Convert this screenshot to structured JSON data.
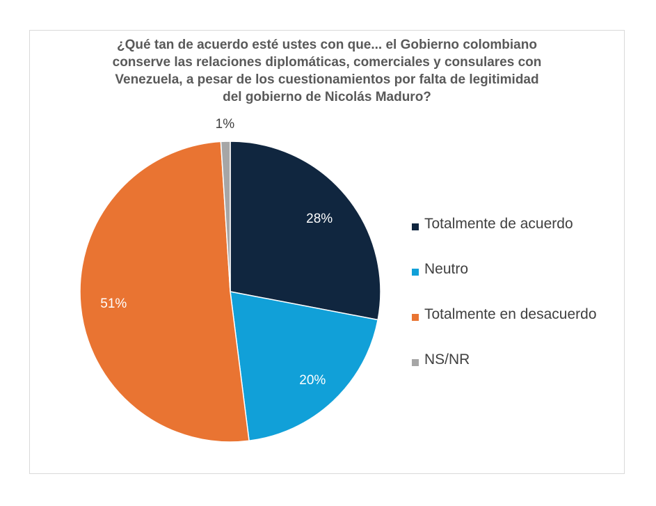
{
  "chart_data": {
    "type": "pie",
    "title_lines": [
      "¿Qué tan de acuerdo esté ustes con que... el Gobierno colombiano",
      "conserve las relaciones diplomáticas, comerciales y consulares con",
      "Venezuela, a pesar de los cuestionamientos por falta de legitimidad",
      "del gobierno de Nicolás Maduro?"
    ],
    "categories": [
      "Totalmente de acuerdo",
      "Neutro",
      "Totalmente en desacuerdo",
      "NS/NR"
    ],
    "values": [
      28,
      20,
      51,
      1
    ],
    "labels": [
      "28%",
      "20%",
      "51%",
      "1%"
    ],
    "colors": [
      "#10263f",
      "#11a0d8",
      "#e97432",
      "#a6a6a6"
    ],
    "label_colors": [
      "#ffffff",
      "#ffffff",
      "#ffffff",
      "#404040"
    ],
    "legend_position": "right"
  }
}
